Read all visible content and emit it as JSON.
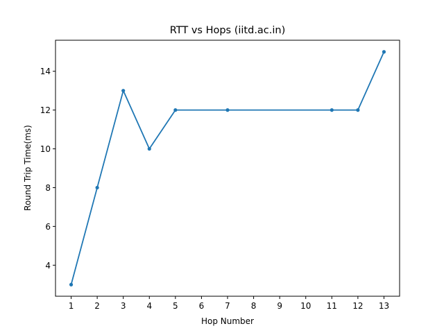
{
  "chart_data": {
    "type": "line",
    "title": "RTT vs Hops (iitd.ac.in)",
    "xlabel": "Hop Number",
    "ylabel": "Round Trip Time(ms)",
    "xticks": [
      "1",
      "2",
      "3",
      "4",
      "5",
      "6",
      "7",
      "8",
      "9",
      "10",
      "11",
      "12",
      "13"
    ],
    "yticks": [
      4,
      6,
      8,
      10,
      12,
      14
    ],
    "xlim": [
      0.4,
      13.6
    ],
    "ylim": [
      2.4,
      15.6
    ],
    "grid": false,
    "series": [
      {
        "x": [
          1,
          2,
          3,
          4,
          5,
          7,
          11,
          12,
          13
        ],
        "y": [
          3,
          8,
          13,
          10,
          12,
          12,
          12,
          12,
          15
        ],
        "color": "#1f77b4",
        "marker": "dot"
      }
    ]
  }
}
